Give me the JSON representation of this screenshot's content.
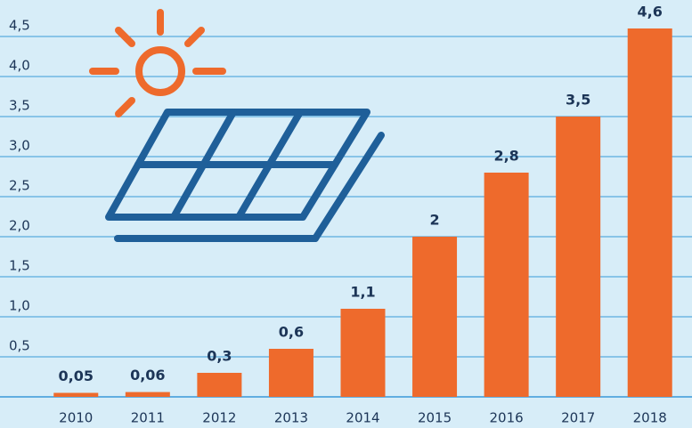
{
  "chart_data": {
    "type": "bar",
    "categories": [
      "2010",
      "2011",
      "2012",
      "2013",
      "2014",
      "2015",
      "2016",
      "2017",
      "2018"
    ],
    "values": [
      0.05,
      0.06,
      0.3,
      0.6,
      1.1,
      2,
      2.8,
      3.5,
      4.6
    ],
    "value_labels": [
      "0,05",
      "0,06",
      "0,3",
      "0,6",
      "1,1",
      "2",
      "2,8",
      "3,5",
      "4,6"
    ],
    "color": "#ee6a2c",
    "ylim": [
      0,
      4.8
    ],
    "yticks": [
      {
        "value": 0.5,
        "label": "0,5"
      },
      {
        "value": 1.0,
        "label": "1,0"
      },
      {
        "value": 1.5,
        "label": "1,5"
      },
      {
        "value": 2.0,
        "label": "2,0"
      },
      {
        "value": 2.5,
        "label": "2,5"
      },
      {
        "value": 3.0,
        "label": "3,0"
      },
      {
        "value": 3.5,
        "label": "3,5"
      },
      {
        "value": 4.0,
        "label": "4,0"
      },
      {
        "value": 4.5,
        "label": "4,5"
      }
    ],
    "grid": true
  }
}
